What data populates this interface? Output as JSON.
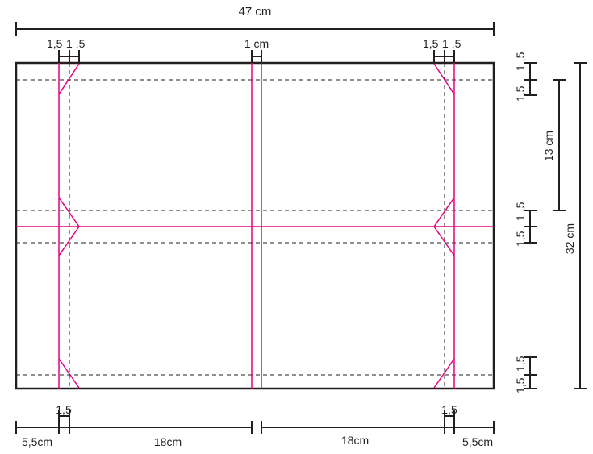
{
  "colors": {
    "outline": "#231f20",
    "dashed": "#231f20",
    "cut_lines": "#e5007e",
    "background": "#ffffff"
  },
  "labels": {
    "total_width": "47 cm",
    "total_height": "32 cm",
    "section_height": "13 cm",
    "center_gap": "1 cm",
    "top_left_tick_a": "1,5",
    "top_left_tick_b": "1 ,5",
    "top_right_tick_a": "1,5",
    "top_right_tick_b": "1 ,5",
    "right_top_a": "1,5",
    "right_top_b": "1 ,5",
    "right_mid_a": "1,5",
    "right_mid_b": "1 ,5",
    "right_bottom_a": "1,5",
    "right_bottom_b": "1,5",
    "bottom_left_tick": "1,5",
    "bottom_right_tick": "1,5",
    "bottom_left_margin": "5,5cm",
    "bottom_left_panel": "18cm",
    "bottom_right_panel": "18cm",
    "bottom_right_margin": "5,5cm"
  }
}
